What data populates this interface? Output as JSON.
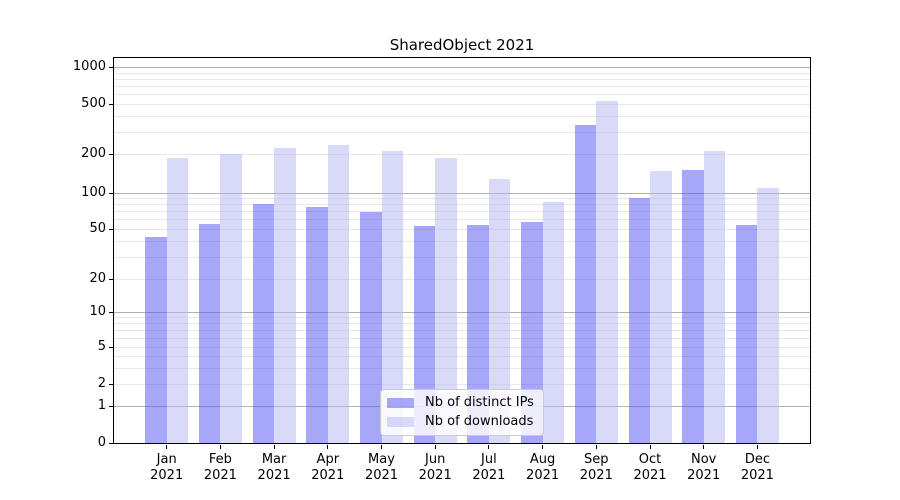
{
  "title": "SharedObject 2021",
  "colors": {
    "ips_bar": "rgba(86,86,243,0.52)",
    "downloads_bar": "rgba(180,180,242,0.50)",
    "grid_major": "#b2b2b2",
    "grid_minor": "#e8e8e8",
    "axis": "#000000",
    "legend_border": "#cccccc"
  },
  "chart_data": {
    "type": "bar",
    "title": "SharedObject 2021",
    "months": [
      "Jan",
      "Feb",
      "Mar",
      "Apr",
      "May",
      "Jun",
      "Jul",
      "Aug",
      "Sep",
      "Oct",
      "Nov",
      "Dec"
    ],
    "year": "2021",
    "categories": [
      "Jan 2021",
      "Feb 2021",
      "Mar 2021",
      "Apr 2021",
      "May 2021",
      "Jun 2021",
      "Jul 2021",
      "Aug 2021",
      "Sep 2021",
      "Oct 2021",
      "Nov 2021",
      "Dec 2021"
    ],
    "series": [
      {
        "name": "Nb of distinct IPs",
        "values": [
          43,
          55,
          80,
          76,
          69,
          52,
          54,
          57,
          340,
          90,
          150,
          54
        ]
      },
      {
        "name": "Nb of downloads",
        "values": [
          186,
          200,
          225,
          235,
          210,
          186,
          128,
          84,
          530,
          147,
          210,
          108
        ]
      }
    ],
    "y_ticks": [
      0,
      1,
      2,
      5,
      10,
      20,
      50,
      100,
      200,
      500,
      1000
    ],
    "yscale": "symlog",
    "ylim": [
      0,
      1180
    ],
    "xlabel": "",
    "ylabel": "",
    "grid": "both",
    "legend_position": "lower center"
  }
}
